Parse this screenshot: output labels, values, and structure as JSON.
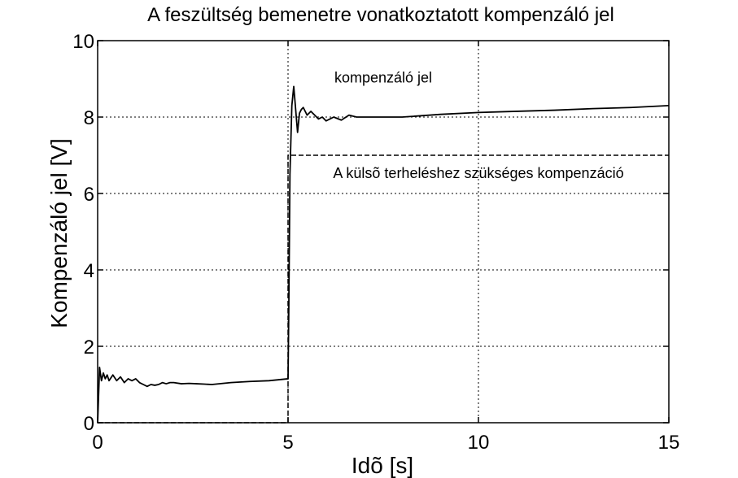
{
  "chart_data": {
    "type": "line",
    "title": "A feszültség bemenetre vonatkoztatott kompenzáló jel",
    "xlabel": "Idõ [s]",
    "ylabel": "Kompenzáló jel [V]",
    "xlim": [
      0,
      15
    ],
    "ylim": [
      0,
      10
    ],
    "xticks": [
      0,
      5,
      10,
      15
    ],
    "yticks": [
      0,
      2,
      4,
      6,
      8,
      10
    ],
    "grid": true,
    "series": [
      {
        "name": "kompenzáló jel",
        "style": "solid",
        "color": "#000000",
        "x": [
          0,
          0.05,
          0.1,
          0.15,
          0.2,
          0.25,
          0.3,
          0.4,
          0.5,
          0.6,
          0.7,
          0.8,
          0.9,
          1.0,
          1.1,
          1.2,
          1.3,
          1.4,
          1.5,
          1.6,
          1.7,
          1.8,
          1.9,
          2.0,
          2.2,
          2.4,
          2.6,
          2.8,
          3.0,
          3.5,
          4.0,
          4.5,
          5.0,
          5.02,
          5.05,
          5.1,
          5.15,
          5.2,
          5.25,
          5.3,
          5.35,
          5.4,
          5.5,
          5.6,
          5.7,
          5.8,
          5.9,
          6.0,
          6.2,
          6.4,
          6.6,
          6.8,
          7.0,
          7.3,
          7.6,
          8.0,
          9.0,
          10.0,
          11.0,
          12.0,
          13.0,
          14.0,
          15.0
        ],
        "y": [
          0.0,
          1.45,
          1.1,
          1.3,
          1.15,
          1.25,
          1.1,
          1.25,
          1.1,
          1.2,
          1.05,
          1.15,
          1.1,
          1.15,
          1.05,
          1.0,
          0.95,
          1.0,
          0.98,
          1.0,
          1.05,
          1.02,
          1.05,
          1.05,
          1.02,
          1.03,
          1.02,
          1.01,
          1.0,
          1.05,
          1.08,
          1.1,
          1.15,
          3.0,
          6.5,
          8.3,
          8.8,
          8.2,
          7.6,
          8.1,
          8.2,
          8.25,
          8.05,
          8.15,
          8.05,
          7.95,
          8.0,
          7.9,
          8.0,
          7.92,
          8.05,
          8.0,
          8.0,
          8.0,
          8.0,
          8.0,
          8.07,
          8.12,
          8.15,
          8.18,
          8.22,
          8.25,
          8.3
        ]
      },
      {
        "name": "A külsõ terheléshez szükséges kompenzáció",
        "style": "dashed",
        "color": "#000000",
        "x": [
          0,
          5.0,
          5.0,
          15.0
        ],
        "y": [
          0,
          0,
          7.0,
          7.0
        ]
      }
    ],
    "annotations": [
      {
        "text": "kompenzáló jel",
        "x": 7.5,
        "y": 8.9
      },
      {
        "text": "A külsõ terheléshez szükséges kompenzáció",
        "x": 10.0,
        "y": 6.4
      }
    ]
  }
}
